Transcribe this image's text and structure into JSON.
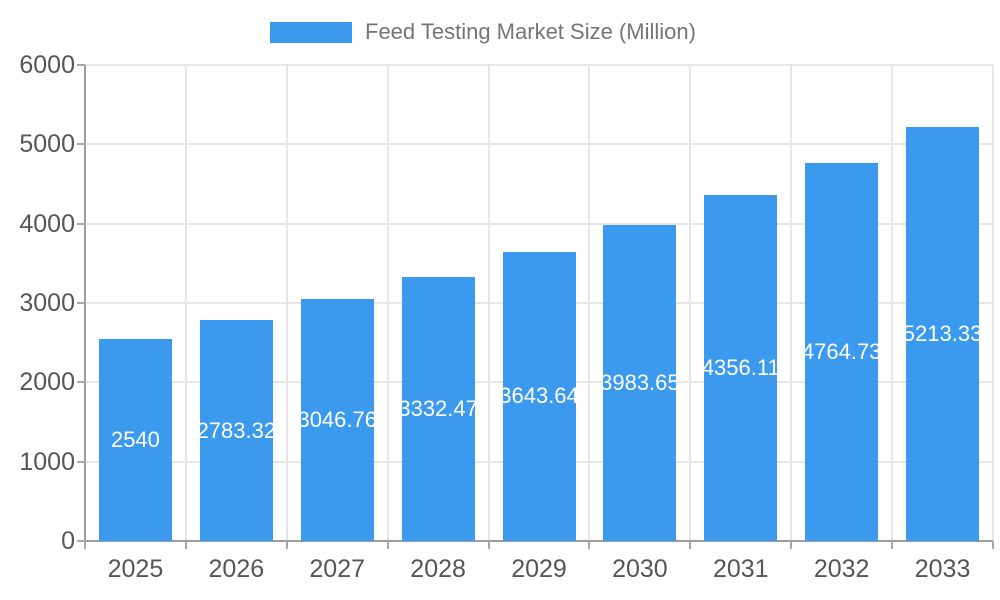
{
  "legend": {
    "label": "Feed Testing Market Size (Million)"
  },
  "colors": {
    "bar": "#3b99ee",
    "grid": "#e6e6e6",
    "axis_line": "#9e9e9e",
    "tick": "#a8a8a8",
    "axis_text": "#565656",
    "legend_text": "#757575",
    "bar_label_text": "#ffffff",
    "background": "#ffffff"
  },
  "chart_data": {
    "type": "bar",
    "title": "Feed Testing Market Size (Million)",
    "categories": [
      "2025",
      "2026",
      "2027",
      "2028",
      "2029",
      "2030",
      "2031",
      "2032",
      "2033"
    ],
    "values": [
      2540,
      2783.32,
      3046.76,
      3332.47,
      3643.64,
      3983.65,
      4356.11,
      4764.73,
      5213.33
    ],
    "bar_labels": [
      "2540",
      "2783.32",
      "3046.76",
      "3332.47",
      "3643.64",
      "3983.65",
      "4356.11",
      "4764.73",
      "5213.33"
    ],
    "xlabel": "",
    "ylabel": "",
    "ylim": [
      0,
      6000
    ],
    "y_ticks": [
      0,
      1000,
      2000,
      3000,
      4000,
      5000,
      6000
    ],
    "y_tick_labels": [
      "0",
      "1000",
      "2000",
      "3000",
      "4000",
      "5000",
      "6000"
    ],
    "grid": true,
    "legend_position": "top"
  }
}
